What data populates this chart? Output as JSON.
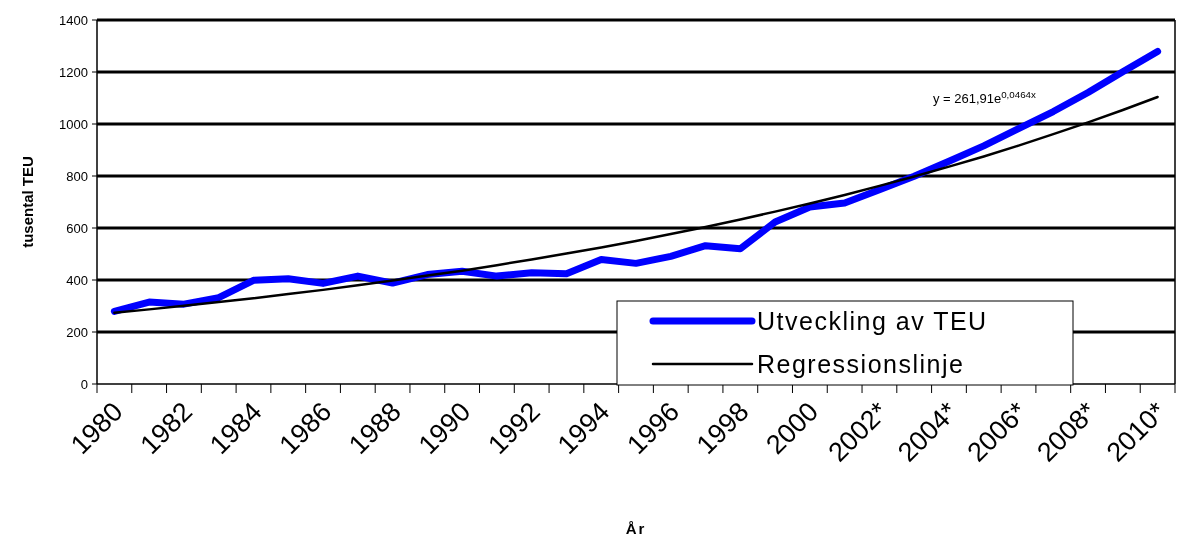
{
  "chart_data": {
    "type": "line",
    "xlabel": "År",
    "ylabel": "tusental TEU",
    "categories": [
      "1980",
      null,
      "1982",
      null,
      "1984",
      null,
      "1986",
      null,
      "1988",
      null,
      "1990",
      null,
      "1992",
      null,
      "1994",
      null,
      "1996",
      null,
      "1998",
      null,
      "2000",
      null,
      "2002*",
      null,
      "2004*",
      null,
      "2006*",
      null,
      "2008*",
      null,
      "2010*"
    ],
    "series": [
      {
        "name": "Utveckling av TEU",
        "color": "#0000ff",
        "values": [
          279,
          315,
          307,
          332,
          399,
          405,
          387,
          415,
          388,
          421,
          434,
          415,
          428,
          424,
          479,
          464,
          491,
          532,
          520,
          623,
          681,
          696,
          747,
          799,
          857,
          916,
          982,
          1048,
          1121,
          1201,
          1279
        ]
      },
      {
        "name": "Regressionslinje",
        "color": "#000000",
        "values": [
          274,
          287,
          301,
          315,
          330,
          346,
          362,
          380,
          398,
          417,
          436,
          457,
          479,
          502,
          525,
          550,
          577,
          604,
          633,
          663,
          694,
          727,
          762,
          798,
          836,
          875,
          917,
          961,
          1006,
          1054,
          1104
        ]
      }
    ],
    "ylim": [
      0,
      1400
    ],
    "yticks": [
      0,
      200,
      400,
      600,
      800,
      1000,
      1200,
      1400
    ],
    "grid": "y",
    "legend": "bottom right",
    "marker": "none",
    "line_style": "solid",
    "annotations": [
      "y = 261,91e$^{0,0464x}$"
    ]
  }
}
